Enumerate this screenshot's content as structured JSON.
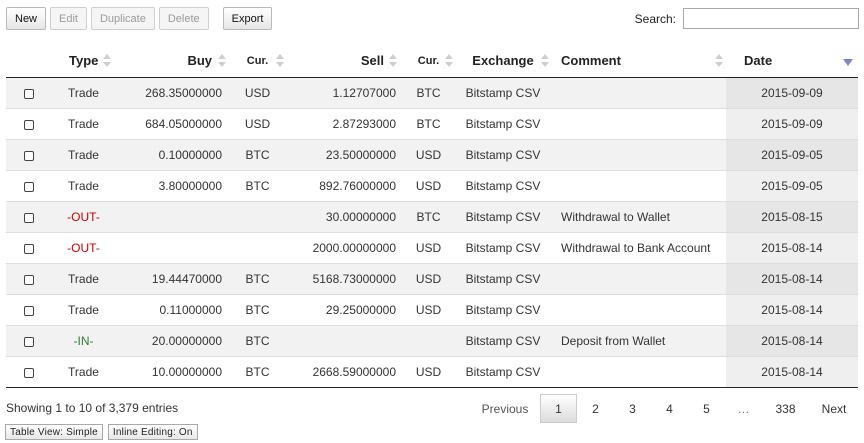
{
  "toolbar": {
    "new_label": "New",
    "edit_label": "Edit",
    "duplicate_label": "Duplicate",
    "delete_label": "Delete",
    "export_label": "Export"
  },
  "search": {
    "label": "Search:",
    "value": "",
    "placeholder": ""
  },
  "table": {
    "headers": {
      "type": "Type",
      "buy": "Buy",
      "cur1": "Cur.",
      "sell": "Sell",
      "cur2": "Cur.",
      "exchange": "Exchange",
      "comment": "Comment",
      "date": "Date"
    },
    "rows": [
      {
        "type": "Trade",
        "buy": "268.35000000",
        "buy_cur": "USD",
        "sell": "1.12707000",
        "sell_cur": "BTC",
        "exchange": "Bitstamp CSV",
        "comment": "",
        "date": "2015-09-09"
      },
      {
        "type": "Trade",
        "buy": "684.05000000",
        "buy_cur": "USD",
        "sell": "2.87293000",
        "sell_cur": "BTC",
        "exchange": "Bitstamp CSV",
        "comment": "",
        "date": "2015-09-09"
      },
      {
        "type": "Trade",
        "buy": "0.10000000",
        "buy_cur": "BTC",
        "sell": "23.50000000",
        "sell_cur": "USD",
        "exchange": "Bitstamp CSV",
        "comment": "",
        "date": "2015-09-05"
      },
      {
        "type": "Trade",
        "buy": "3.80000000",
        "buy_cur": "BTC",
        "sell": "892.76000000",
        "sell_cur": "USD",
        "exchange": "Bitstamp CSV",
        "comment": "",
        "date": "2015-09-05"
      },
      {
        "type": "-OUT-",
        "buy": "",
        "buy_cur": "",
        "sell": "30.00000000",
        "sell_cur": "BTC",
        "exchange": "Bitstamp CSV",
        "comment": "Withdrawal to Wallet",
        "date": "2015-08-15"
      },
      {
        "type": "-OUT-",
        "buy": "",
        "buy_cur": "",
        "sell": "2000.00000000",
        "sell_cur": "USD",
        "exchange": "Bitstamp CSV",
        "comment": "Withdrawal to Bank Account",
        "date": "2015-08-14"
      },
      {
        "type": "Trade",
        "buy": "19.44470000",
        "buy_cur": "BTC",
        "sell": "5168.73000000",
        "sell_cur": "USD",
        "exchange": "Bitstamp CSV",
        "comment": "",
        "date": "2015-08-14"
      },
      {
        "type": "Trade",
        "buy": "0.11000000",
        "buy_cur": "BTC",
        "sell": "29.25000000",
        "sell_cur": "USD",
        "exchange": "Bitstamp CSV",
        "comment": "",
        "date": "2015-08-14"
      },
      {
        "type": "-IN-",
        "buy": "20.00000000",
        "buy_cur": "BTC",
        "sell": "",
        "sell_cur": "",
        "exchange": "Bitstamp CSV",
        "comment": "Deposit from Wallet",
        "date": "2015-08-14"
      },
      {
        "type": "Trade",
        "buy": "10.00000000",
        "buy_cur": "BTC",
        "sell": "2668.59000000",
        "sell_cur": "USD",
        "exchange": "Bitstamp CSV",
        "comment": "",
        "date": "2015-08-14"
      }
    ]
  },
  "status": {
    "info": "Showing 1 to 10 of 3,379 entries"
  },
  "pagination": {
    "previous": "Previous",
    "pages": [
      "1",
      "2",
      "3",
      "4",
      "5"
    ],
    "current": "1",
    "ellipsis": "…",
    "last": "338",
    "next": "Next"
  },
  "footer": {
    "table_view_label": "Table View: Simple",
    "inline_editing_label": "Inline Editing: On"
  },
  "colors": {
    "out_type": "#cc0000",
    "in_type": "#2e7d32",
    "sort_active": "#7b86c8",
    "row_stripe": "#f2f2f2",
    "sorted_column": "#e6e6e6"
  },
  "icons": {
    "sort_both": "sort-both-icon",
    "sort_desc": "sort-desc-icon",
    "row_checkbox": "checkbox-icon"
  }
}
